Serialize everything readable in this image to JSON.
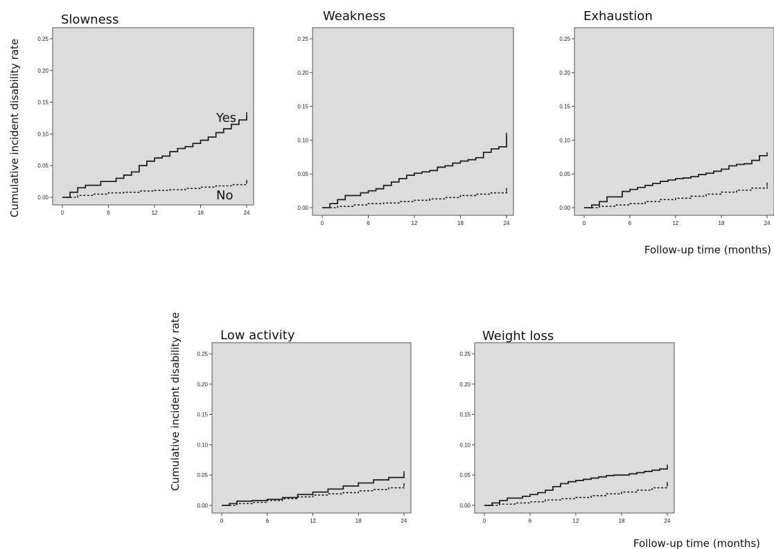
{
  "chart_data": [
    {
      "type": "line",
      "title": "Slowness",
      "ylabel": "Cumulative incident disability rate",
      "xlabel": "",
      "xlim": [
        0,
        24
      ],
      "ylim": [
        0,
        0.25
      ],
      "x_ticks": [
        0,
        6,
        12,
        18,
        24
      ],
      "x_tick_labels": [
        "0",
        "6",
        "12",
        "18",
        "24"
      ],
      "y_ticks": [
        0,
        0.05,
        0.1,
        0.15,
        0.2,
        0.25
      ],
      "y_tick_labels": [
        "0.00",
        "0.05",
        "0.10",
        "0.15",
        "0.20",
        "0.25"
      ],
      "step": true,
      "series": [
        {
          "name": "Yes",
          "style": "solid",
          "x": [
            0,
            1,
            2,
            3,
            5,
            7,
            8,
            9,
            10,
            11,
            12,
            13,
            14,
            15,
            16,
            17,
            18,
            19,
            20,
            21,
            22,
            23,
            24
          ],
          "y": [
            0,
            0.008,
            0.015,
            0.019,
            0.025,
            0.03,
            0.035,
            0.04,
            0.05,
            0.057,
            0.062,
            0.065,
            0.072,
            0.077,
            0.08,
            0.085,
            0.09,
            0.095,
            0.102,
            0.108,
            0.115,
            0.122,
            0.13
          ]
        },
        {
          "name": "No",
          "style": "dashed",
          "x": [
            0,
            2,
            4,
            6,
            8,
            10,
            12,
            14,
            16,
            18,
            20,
            22,
            24
          ],
          "y": [
            0,
            0.003,
            0.005,
            0.007,
            0.008,
            0.01,
            0.011,
            0.012,
            0.014,
            0.016,
            0.018,
            0.02,
            0.023
          ]
        }
      ],
      "annotations": [
        "Yes",
        "No"
      ]
    },
    {
      "type": "line",
      "title": "Weakness",
      "ylabel": "",
      "xlabel": "",
      "xlim": [
        0,
        24
      ],
      "ylim": [
        0,
        0.25
      ],
      "x_ticks": [
        0,
        6,
        12,
        18,
        24
      ],
      "x_tick_labels": [
        "0",
        "6",
        "12",
        "18",
        "24"
      ],
      "y_ticks": [
        0,
        0.05,
        0.1,
        0.15,
        0.2,
        0.25
      ],
      "y_tick_labels": [
        "0.00",
        "0.05",
        "0.10",
        "0.15",
        "0.20",
        "0.25"
      ],
      "step": true,
      "series": [
        {
          "style": "solid",
          "x": [
            0,
            1,
            2,
            3,
            5,
            6,
            7,
            8,
            9,
            10,
            11,
            12,
            13,
            14,
            15,
            16,
            17,
            18,
            19,
            20,
            21,
            22,
            23,
            24
          ],
          "y": [
            0,
            0.006,
            0.012,
            0.018,
            0.022,
            0.025,
            0.028,
            0.033,
            0.038,
            0.043,
            0.048,
            0.051,
            0.053,
            0.055,
            0.06,
            0.062,
            0.066,
            0.069,
            0.071,
            0.074,
            0.082,
            0.087,
            0.09,
            0.107
          ]
        },
        {
          "style": "dashed",
          "x": [
            0,
            2,
            4,
            6,
            8,
            10,
            12,
            14,
            16,
            18,
            20,
            22,
            24
          ],
          "y": [
            0,
            0.002,
            0.004,
            0.006,
            0.007,
            0.009,
            0.011,
            0.013,
            0.015,
            0.018,
            0.02,
            0.022,
            0.025
          ]
        }
      ]
    },
    {
      "type": "line",
      "title": "Exhaustion",
      "ylabel": "",
      "xlabel": "Follow-up time (months)",
      "xlim": [
        0,
        24
      ],
      "ylim": [
        0,
        0.25
      ],
      "x_ticks": [
        0,
        6,
        12,
        18,
        24
      ],
      "x_tick_labels": [
        "0",
        "6",
        "12",
        "18",
        "24"
      ],
      "y_ticks": [
        0,
        0.05,
        0.1,
        0.15,
        0.2,
        0.25
      ],
      "y_tick_labels": [
        "0.00",
        "0.05",
        "0.10",
        "0.15",
        "0.20",
        "0.25"
      ],
      "step": true,
      "series": [
        {
          "style": "solid",
          "x": [
            0,
            1,
            2,
            3,
            5,
            6,
            7,
            8,
            9,
            10,
            11,
            12,
            13,
            14,
            15,
            16,
            17,
            18,
            19,
            20,
            21,
            22,
            23,
            24
          ],
          "y": [
            0,
            0.004,
            0.009,
            0.016,
            0.024,
            0.027,
            0.03,
            0.033,
            0.036,
            0.039,
            0.041,
            0.043,
            0.044,
            0.046,
            0.049,
            0.051,
            0.054,
            0.057,
            0.062,
            0.064,
            0.065,
            0.07,
            0.077,
            0.078
          ]
        },
        {
          "style": "dashed",
          "x": [
            0,
            2,
            4,
            6,
            8,
            10,
            12,
            14,
            16,
            18,
            20,
            22,
            24
          ],
          "y": [
            0,
            0.002,
            0.004,
            0.006,
            0.009,
            0.012,
            0.014,
            0.017,
            0.02,
            0.023,
            0.026,
            0.029,
            0.033
          ]
        }
      ]
    },
    {
      "type": "line",
      "title": "Low activity",
      "ylabel": "Cumulative incident disability rate",
      "xlabel": "",
      "xlim": [
        0,
        24
      ],
      "ylim": [
        0,
        0.25
      ],
      "x_ticks": [
        0,
        6,
        12,
        18,
        24
      ],
      "x_tick_labels": [
        "0",
        "6",
        "12",
        "18",
        "24"
      ],
      "y_ticks": [
        0,
        0.05,
        0.1,
        0.15,
        0.2,
        0.25
      ],
      "y_tick_labels": [
        "0.00",
        "0.05",
        "0.10",
        "0.15",
        "0.20",
        "0.25"
      ],
      "step": true,
      "series": [
        {
          "style": "solid",
          "x": [
            0,
            1,
            2,
            4,
            6,
            8,
            10,
            12,
            14,
            16,
            18,
            20,
            22,
            24
          ],
          "y": [
            0,
            0.003,
            0.007,
            0.008,
            0.01,
            0.013,
            0.018,
            0.022,
            0.027,
            0.032,
            0.037,
            0.042,
            0.046,
            0.052
          ]
        },
        {
          "style": "dashed",
          "x": [
            0,
            2,
            4,
            6,
            8,
            10,
            12,
            14,
            16,
            18,
            20,
            22,
            24
          ],
          "y": [
            0,
            0.003,
            0.005,
            0.008,
            0.011,
            0.014,
            0.017,
            0.019,
            0.021,
            0.024,
            0.026,
            0.029,
            0.032
          ]
        }
      ]
    },
    {
      "type": "line",
      "title": "Weight loss",
      "ylabel": "",
      "xlabel": "Follow-up time (months)",
      "xlim": [
        0,
        24
      ],
      "ylim": [
        0,
        0.25
      ],
      "x_ticks": [
        0,
        6,
        12,
        18,
        24
      ],
      "x_tick_labels": [
        "0",
        "6",
        "12",
        "18",
        "24"
      ],
      "y_ticks": [
        0,
        0.05,
        0.1,
        0.15,
        0.2,
        0.25
      ],
      "y_tick_labels": [
        "0.00",
        "0.05",
        "0.10",
        "0.15",
        "0.20",
        "0.25"
      ],
      "step": true,
      "series": [
        {
          "style": "solid",
          "x": [
            0,
            1,
            2,
            3,
            5,
            6,
            7,
            8,
            9,
            10,
            11,
            12,
            13,
            14,
            15,
            16,
            17,
            18,
            19,
            20,
            21,
            22,
            23,
            24
          ],
          "y": [
            0,
            0.004,
            0.008,
            0.012,
            0.015,
            0.018,
            0.021,
            0.025,
            0.031,
            0.036,
            0.039,
            0.041,
            0.043,
            0.045,
            0.047,
            0.049,
            0.05,
            0.05,
            0.052,
            0.054,
            0.056,
            0.058,
            0.06,
            0.063
          ]
        },
        {
          "style": "dashed",
          "x": [
            0,
            2,
            4,
            6,
            8,
            10,
            12,
            14,
            16,
            18,
            20,
            22,
            24
          ],
          "y": [
            0,
            0.002,
            0.004,
            0.006,
            0.009,
            0.011,
            0.013,
            0.016,
            0.019,
            0.022,
            0.025,
            0.029,
            0.034
          ]
        }
      ]
    }
  ]
}
